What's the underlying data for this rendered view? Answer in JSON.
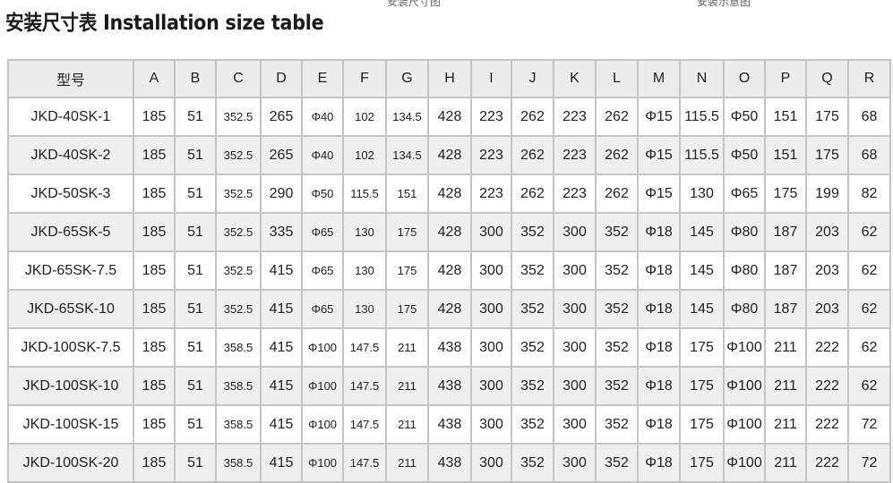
{
  "title": "安装尺寸表 Installation size table",
  "captions": [
    "安装尺寸图",
    "安装示意图"
  ],
  "table": {
    "headers": [
      "型号",
      "A",
      "B",
      "C",
      "D",
      "E",
      "F",
      "G",
      "H",
      "I",
      "J",
      "K",
      "L",
      "M",
      "N",
      "O",
      "P",
      "Q",
      "R"
    ],
    "rows": [
      [
        "JKD-40SK-1",
        "185",
        "51",
        "352.5",
        "265",
        "Φ40",
        "102",
        "134.5",
        "428",
        "223",
        "262",
        "223",
        "262",
        "Φ15",
        "115.5",
        "Φ50",
        "151",
        "175",
        "68"
      ],
      [
        "JKD-40SK-2",
        "185",
        "51",
        "352.5",
        "265",
        "Φ40",
        "102",
        "134.5",
        "428",
        "223",
        "262",
        "223",
        "262",
        "Φ15",
        "115.5",
        "Φ50",
        "151",
        "175",
        "68"
      ],
      [
        "JKD-50SK-3",
        "185",
        "51",
        "352.5",
        "290",
        "Φ50",
        "115.5",
        "151",
        "428",
        "223",
        "262",
        "223",
        "262",
        "Φ15",
        "130",
        "Φ65",
        "175",
        "199",
        "82"
      ],
      [
        "JKD-65SK-5",
        "185",
        "51",
        "352.5",
        "335",
        "Φ65",
        "130",
        "175",
        "428",
        "300",
        "352",
        "300",
        "352",
        "Φ18",
        "145",
        "Φ80",
        "187",
        "203",
        "62"
      ],
      [
        "JKD-65SK-7.5",
        "185",
        "51",
        "352.5",
        "415",
        "Φ65",
        "130",
        "175",
        "428",
        "300",
        "352",
        "300",
        "352",
        "Φ18",
        "145",
        "Φ80",
        "187",
        "203",
        "62"
      ],
      [
        "JKD-65SK-10",
        "185",
        "51",
        "352.5",
        "415",
        "Φ65",
        "130",
        "175",
        "428",
        "300",
        "352",
        "300",
        "352",
        "Φ18",
        "145",
        "Φ80",
        "187",
        "203",
        "62"
      ],
      [
        "JKD-100SK-7.5",
        "185",
        "51",
        "358.5",
        "415",
        "Φ100",
        "147.5",
        "211",
        "438",
        "300",
        "352",
        "300",
        "352",
        "Φ18",
        "175",
        "Φ100",
        "211",
        "222",
        "62"
      ],
      [
        "JKD-100SK-10",
        "185",
        "51",
        "358.5",
        "415",
        "Φ100",
        "147.5",
        "211",
        "438",
        "300",
        "352",
        "300",
        "352",
        "Φ18",
        "175",
        "Φ100",
        "211",
        "222",
        "62"
      ],
      [
        "JKD-100SK-15",
        "185",
        "51",
        "358.5",
        "415",
        "Φ100",
        "147.5",
        "211",
        "438",
        "300",
        "352",
        "300",
        "352",
        "Φ18",
        "175",
        "Φ100",
        "211",
        "222",
        "72"
      ],
      [
        "JKD-100SK-20",
        "185",
        "51",
        "358.5",
        "415",
        "Φ100",
        "147.5",
        "211",
        "438",
        "300",
        "352",
        "300",
        "352",
        "Φ18",
        "175",
        "Φ100",
        "211",
        "222",
        "72"
      ]
    ]
  }
}
